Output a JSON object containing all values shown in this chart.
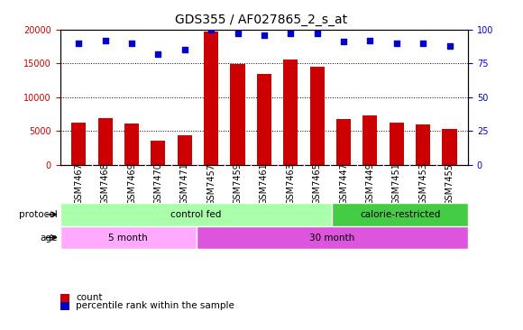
{
  "title": "GDS355 / AF027865_2_s_at",
  "samples": [
    "GSM7467",
    "GSM7468",
    "GSM7469",
    "GSM7470",
    "GSM7471",
    "GSM7457",
    "GSM7459",
    "GSM7461",
    "GSM7463",
    "GSM7465",
    "GSM7447",
    "GSM7449",
    "GSM7451",
    "GSM7453",
    "GSM7455"
  ],
  "counts": [
    6200,
    6900,
    6100,
    3600,
    4400,
    19700,
    14900,
    13500,
    15600,
    14500,
    6800,
    7300,
    6300,
    6000,
    5300
  ],
  "percentiles": [
    90,
    92,
    90,
    82,
    85,
    100,
    97,
    96,
    97,
    97,
    91,
    92,
    90,
    90,
    88
  ],
  "bar_color": "#cc0000",
  "dot_color": "#0000cc",
  "ylim_left": [
    0,
    20000
  ],
  "ylim_right": [
    0,
    100
  ],
  "yticks_left": [
    0,
    5000,
    10000,
    15000,
    20000
  ],
  "yticks_right": [
    0,
    25,
    50,
    75,
    100
  ],
  "protocol_groups": [
    {
      "label": "control fed",
      "start": 0,
      "end": 10,
      "color": "#aaffaa"
    },
    {
      "label": "calorie-restricted",
      "start": 10,
      "end": 15,
      "color": "#44cc44"
    }
  ],
  "age_groups": [
    {
      "label": "5 month",
      "start": 0,
      "end": 5,
      "color": "#ffaaff"
    },
    {
      "label": "30 month",
      "start": 5,
      "end": 15,
      "color": "#dd55dd"
    }
  ],
  "legend_items": [
    {
      "color": "#cc0000",
      "label": "count"
    },
    {
      "color": "#0000cc",
      "label": "percentile rank within the sample"
    }
  ],
  "plot_bg_color": "#ffffff",
  "xtick_bg_color": "#c8c8c8",
  "grid_color": "#000000",
  "title_fontsize": 10,
  "tick_fontsize": 7,
  "bar_width": 0.55
}
